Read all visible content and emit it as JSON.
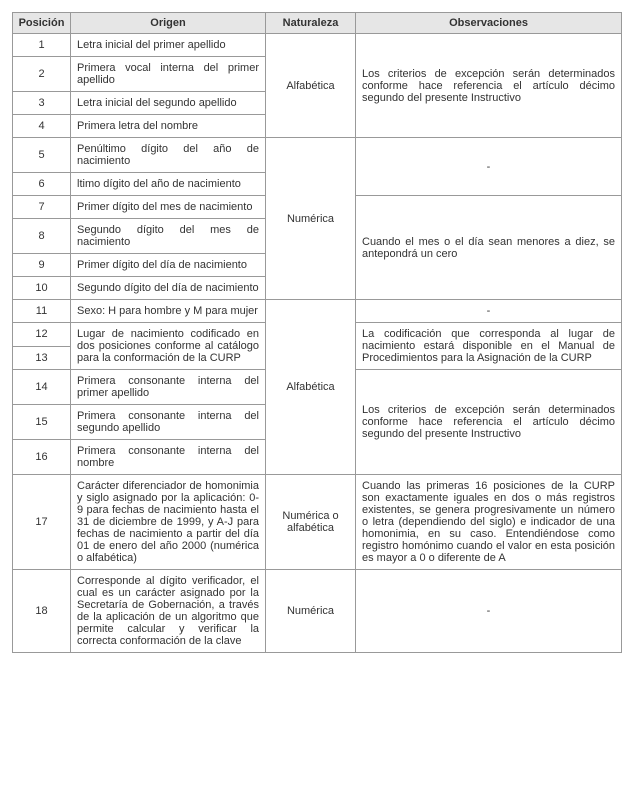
{
  "headers": {
    "posicion": "Posición",
    "origen": "Origen",
    "naturaleza": "Naturaleza",
    "observaciones": "Observaciones"
  },
  "pos": {
    "r1": "1",
    "r2": "2",
    "r3": "3",
    "r4": "4",
    "r5": "5",
    "r6": "6",
    "r7": "7",
    "r8": "8",
    "r9": "9",
    "r10": "10",
    "r11": "11",
    "r12": "12",
    "r13": "13",
    "r14": "14",
    "r15": "15",
    "r16": "16",
    "r17": "17",
    "r18": "18"
  },
  "origen": {
    "r1": "Letra inicial del primer apellido",
    "r2": "Primera vocal interna del primer apellido",
    "r3": "Letra inicial del segundo apellido",
    "r4": "Primera letra del nombre",
    "r5": "Penúltimo dígito del año de nacimiento",
    "r6": "ltimo dígito del año de nacimiento",
    "r7": "Primer dígito del mes de nacimiento",
    "r8": "Segundo dígito del mes de nacimiento",
    "r9": "Primer dígito del día de nacimiento",
    "r10": "Segundo dígito del día de nacimiento",
    "r11": "Sexo: H para hombre y M para mujer",
    "r12_13": "Lugar de nacimiento codificado en dos posiciones conforme al catálogo para la conformación de la CURP",
    "r14": "Primera consonante interna del primer apellido",
    "r15": "Primera consonante interna del segundo apellido",
    "r16": "Primera consonante interna del nombre",
    "r17": "Carácter diferenciador de homonimia y siglo asignado por la aplicación: 0-9 para fechas de nacimiento hasta el 31 de diciembre de 1999, y A-J para fechas de nacimiento a partir del día 01 de enero del año 2000 (numérica o alfabética)",
    "r18": "Corresponde al dígito verificador, el cual es un carácter asignado por la Secretaría de Gobernación, a través de la aplicación de un algoritmo que permite calcular y verificar la correcta conformación de la clave"
  },
  "naturaleza": {
    "n1": "Alfabética",
    "n2": "Numérica",
    "n3": "Alfabética",
    "n4": "Numérica o alfabética",
    "n5": "Numérica"
  },
  "obs": {
    "o1": "Los criterios de excepción serán determinados conforme hace referencia el artículo décimo segundo del presente Instructivo",
    "o2_dash_a": "-",
    "o3": "Cuando el mes o el día sean menores a diez, se antepondrá un cero",
    "o4_dash": "-",
    "o5": "La codificación que corresponda al lugar de nacimiento estará disponible en el Manual de Procedimientos para la Asignación de la CURP",
    "o6": "Los criterios de excepción serán determinados conforme hace referencia el artículo décimo segundo del presente Instructivo",
    "o7": "Cuando las primeras 16 posiciones de la CURP son exactamente iguales en dos o más registros existentes, se genera progresivamente un número o letra (dependiendo del siglo) e indicador de una homonimia, en su caso. Entendiéndose como registro homónimo cuando el valor en esta posición es mayor a 0 o diferente de A",
    "o8_dash": "-"
  }
}
